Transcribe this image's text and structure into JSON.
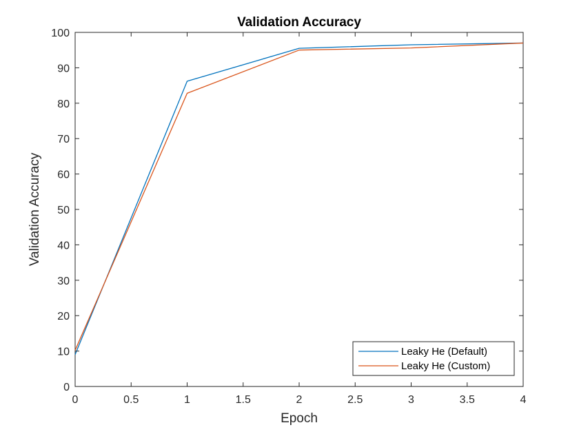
{
  "chart_data": {
    "type": "line",
    "title": "Validation Accuracy",
    "xlabel": "Epoch",
    "ylabel": "Validation Accuracy",
    "xlim": [
      0,
      4
    ],
    "ylim": [
      0,
      100
    ],
    "xticks": [
      0,
      0.5,
      1,
      1.5,
      2,
      2.5,
      3,
      3.5,
      4
    ],
    "xtick_labels": [
      "0",
      "0.5",
      "1",
      "1.5",
      "2",
      "2.5",
      "3",
      "3.5",
      "4"
    ],
    "yticks": [
      0,
      10,
      20,
      30,
      40,
      50,
      60,
      70,
      80,
      90,
      100
    ],
    "ytick_labels": [
      "0",
      "10",
      "20",
      "30",
      "40",
      "50",
      "60",
      "70",
      "80",
      "90",
      "100"
    ],
    "grid": false,
    "legend_position": "bottom-right",
    "x": [
      0,
      1,
      2,
      3,
      4
    ],
    "series": [
      {
        "name": "Leaky He (Default)",
        "color": "#0072BD",
        "values": [
          9.0,
          86.2,
          95.5,
          96.5,
          97.0
        ]
      },
      {
        "name": "Leaky He (Custom)",
        "color": "#D95319",
        "values": [
          10.2,
          82.8,
          95.0,
          95.6,
          97.0
        ]
      }
    ]
  }
}
